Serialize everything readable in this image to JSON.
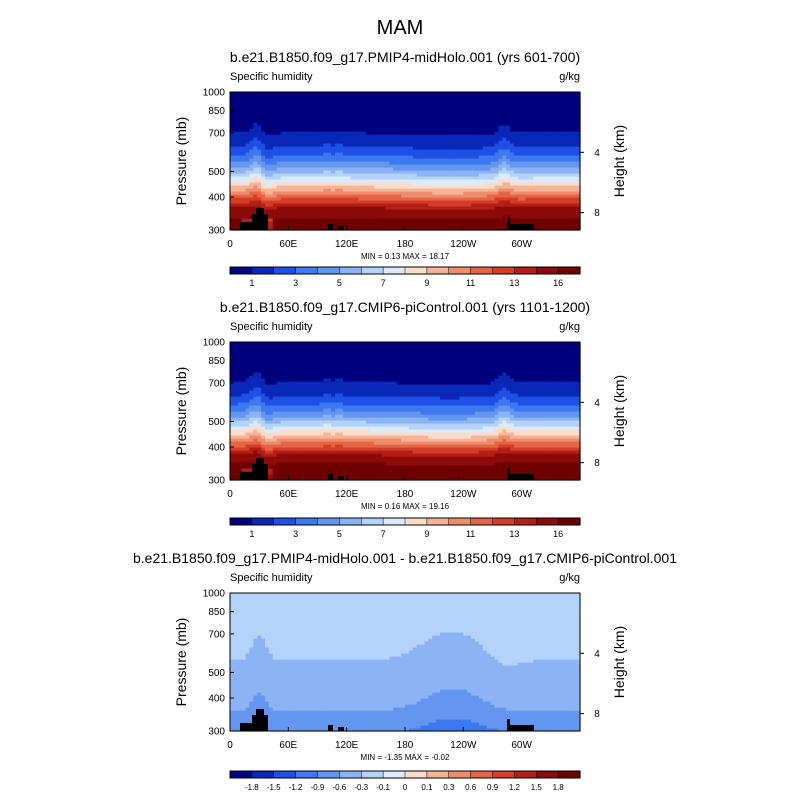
{
  "figure": {
    "title": "MAM"
  },
  "colors": {
    "abs_scale": [
      "#00007f",
      "#0a28b8",
      "#1e50e6",
      "#3c78f0",
      "#6496f0",
      "#8cb4f5",
      "#b4d2fa",
      "#dcebfa",
      "#fadcc8",
      "#f5b496",
      "#f08c6e",
      "#e66446",
      "#d23c28",
      "#b41e14",
      "#8c0a0a",
      "#6e0000"
    ],
    "diff_scale": [
      "#00007f",
      "#0a28b8",
      "#1e50e6",
      "#3c78f0",
      "#6496f0",
      "#8cb4f5",
      "#b4d2fa",
      "#dcebfa",
      "#fadcc8",
      "#f5b496",
      "#f08c6e",
      "#e66446",
      "#d23c28",
      "#b41e14",
      "#8c0a0a",
      "#6e0000"
    ],
    "terrain": "#000000"
  },
  "chart_data": [
    {
      "type": "heatmap",
      "title": "b.e21.B1850.f09_g17.PMIP4-midHolo.001 (yrs 601-700)",
      "left_label": "Specific humidity",
      "right_label": "g/kg",
      "ylabel": "Pressure (mb)",
      "y2label": "Height (km)",
      "x_ticks": [
        "0",
        "60E",
        "120E",
        "180",
        "120W",
        "60W"
      ],
      "x_tick_lons": [
        0,
        60,
        120,
        180,
        240,
        300
      ],
      "xlim": [
        0,
        360
      ],
      "y_ticks": [
        "300",
        "400",
        "500",
        "700",
        "850",
        "1000"
      ],
      "y_tick_values": [
        300,
        400,
        500,
        700,
        850,
        1000
      ],
      "ylim": [
        1000,
        300
      ],
      "y2_ticks": [
        "8",
        "4"
      ],
      "y2_tick_values": [
        8,
        4
      ],
      "stats": "MIN =  0.13  MAX =  18.17",
      "colorbar_labels": [
        "1",
        "3",
        "5",
        "7",
        "9",
        "11",
        "13",
        "16"
      ],
      "colorbar_levels": [
        1,
        2,
        3,
        4,
        5,
        6,
        7,
        8,
        9,
        10,
        11,
        12,
        13,
        14,
        16
      ],
      "kind": "abs"
    },
    {
      "type": "heatmap",
      "title": "b.e21.B1850.f09_g17.CMIP6-piControl.001 (yrs 1101-1200)",
      "left_label": "Specific humidity",
      "right_label": "g/kg",
      "ylabel": "Pressure (mb)",
      "y2label": "Height (km)",
      "x_ticks": [
        "0",
        "60E",
        "120E",
        "180",
        "120W",
        "60W"
      ],
      "x_tick_lons": [
        0,
        60,
        120,
        180,
        240,
        300
      ],
      "xlim": [
        0,
        360
      ],
      "y_ticks": [
        "300",
        "400",
        "500",
        "700",
        "850",
        "1000"
      ],
      "y_tick_values": [
        300,
        400,
        500,
        700,
        850,
        1000
      ],
      "ylim": [
        1000,
        300
      ],
      "y2_ticks": [
        "8",
        "4"
      ],
      "y2_tick_values": [
        8,
        4
      ],
      "stats": "MIN =  0.16  MAX =  19.16",
      "colorbar_labels": [
        "1",
        "3",
        "5",
        "7",
        "9",
        "11",
        "13",
        "16"
      ],
      "colorbar_levels": [
        1,
        2,
        3,
        4,
        5,
        6,
        7,
        8,
        9,
        10,
        11,
        12,
        13,
        14,
        16
      ],
      "kind": "abs"
    },
    {
      "type": "heatmap",
      "title": "b.e21.B1850.f09_g17.PMIP4-midHolo.001 - b.e21.B1850.f09_g17.CMIP6-piControl.001",
      "left_label": "Specific humidity",
      "right_label": "g/kg",
      "ylabel": "Pressure (mb)",
      "y2label": "Height (km)",
      "x_ticks": [
        "0",
        "60E",
        "120E",
        "180",
        "120W",
        "60W"
      ],
      "x_tick_lons": [
        0,
        60,
        120,
        180,
        240,
        300
      ],
      "xlim": [
        0,
        360
      ],
      "y_ticks": [
        "300",
        "400",
        "500",
        "700",
        "850",
        "1000"
      ],
      "y_tick_values": [
        300,
        400,
        500,
        700,
        850,
        1000
      ],
      "ylim": [
        1000,
        300
      ],
      "y2_ticks": [
        "8",
        "4"
      ],
      "y2_tick_values": [
        8,
        4
      ],
      "stats": "MIN =  -1.35  MAX =  -0.02",
      "colorbar_labels": [
        "-1.8",
        "-1.5",
        "-1.2",
        "-0.9",
        "-0.6",
        "-0.3",
        "-0.1",
        "0",
        "0.1",
        "0.3",
        "0.6",
        "0.9",
        "1.2",
        "1.5",
        "1.8"
      ],
      "colorbar_levels": [
        -1.8,
        -1.5,
        -1.2,
        -0.9,
        -0.6,
        -0.3,
        -0.1,
        0,
        0.1,
        0.3,
        0.6,
        0.9,
        1.2,
        1.5,
        1.8
      ],
      "kind": "diff"
    }
  ]
}
